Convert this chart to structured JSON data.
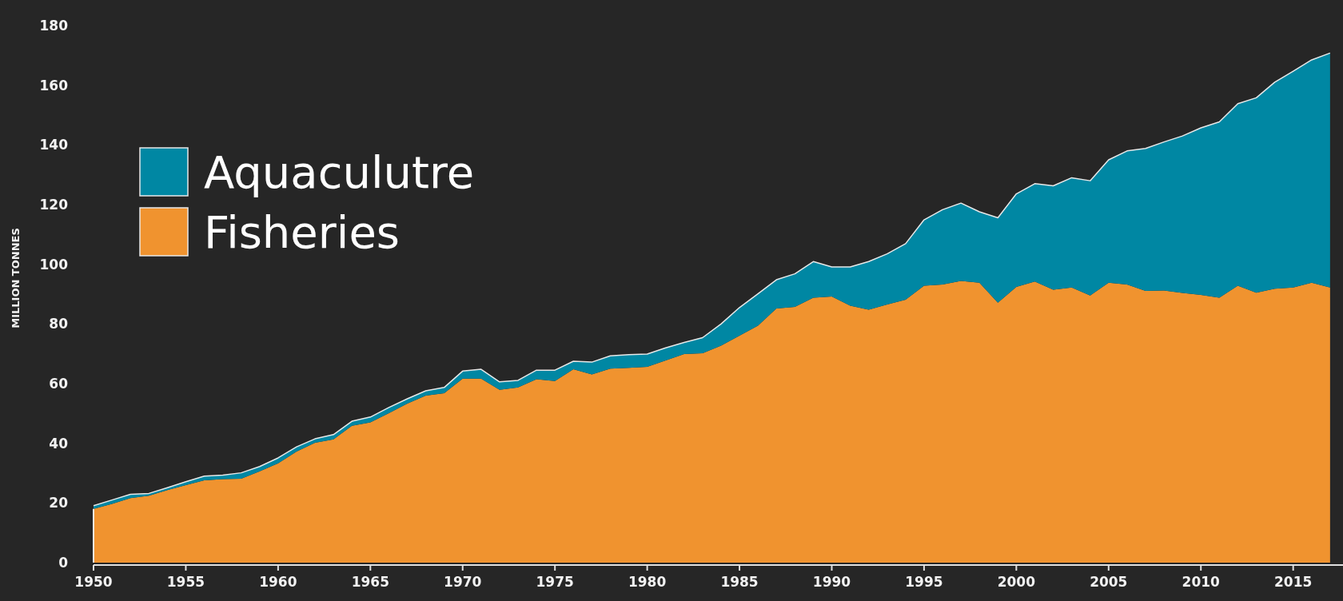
{
  "chart_data": {
    "type": "area",
    "stacked": true,
    "ylabel": "MILLION TONNES",
    "legend": "top left",
    "grid": false,
    "x": [
      1950,
      1951,
      1952,
      1953,
      1954,
      1955,
      1956,
      1957,
      1958,
      1959,
      1960,
      1961,
      1962,
      1963,
      1964,
      1965,
      1966,
      1967,
      1968,
      1969,
      1970,
      1971,
      1972,
      1973,
      1974,
      1975,
      1976,
      1977,
      1978,
      1979,
      1980,
      1981,
      1982,
      1983,
      1984,
      1985,
      1986,
      1987,
      1988,
      1989,
      1990,
      1991,
      1992,
      1993,
      1994,
      1995,
      1996,
      1997,
      1998,
      1999,
      2000,
      2001,
      2002,
      2003,
      2004,
      2005,
      2006,
      2007,
      2008,
      2009,
      2010,
      2011,
      2012,
      2013,
      2014,
      2015,
      2016,
      2017
    ],
    "xlim": [
      1950,
      2017.7
    ],
    "xticks": [
      1950,
      1955,
      1960,
      1965,
      1970,
      1975,
      1980,
      1985,
      1990,
      1995,
      2000,
      2005,
      2010,
      2015
    ],
    "ylim": [
      0,
      180
    ],
    "yticks": [
      0,
      20,
      40,
      60,
      80,
      100,
      120,
      140,
      160,
      180
    ],
    "series": [
      {
        "name": "Fisheries",
        "color": "#f0932f",
        "values": [
          18.0,
          19.7,
          21.6,
          22.4,
          24.3,
          26.0,
          27.6,
          28.0,
          28.1,
          30.6,
          33.3,
          37.2,
          40.2,
          41.3,
          45.9,
          47.0,
          50.1,
          53.3,
          56.0,
          56.8,
          61.7,
          61.7,
          57.9,
          58.7,
          61.5,
          60.9,
          64.8,
          63.1,
          65.0,
          65.3,
          65.6,
          67.8,
          69.9,
          70.2,
          72.7,
          76.1,
          79.4,
          85.2,
          85.7,
          88.8,
          89.2,
          86.1,
          84.8,
          86.5,
          88.1,
          92.8,
          93.2,
          94.4,
          93.8,
          87.1,
          92.4,
          94.2,
          91.5,
          92.2,
          89.5,
          93.8,
          93.2,
          91.1,
          91.2,
          90.4,
          89.7,
          88.8,
          92.8,
          90.5,
          91.8,
          92.2,
          93.8,
          92.2
        ]
      },
      {
        "name": "Aquaculutre",
        "color": "#0087a3",
        "values": [
          1.1,
          1.3,
          1.3,
          0.8,
          0.8,
          1.1,
          1.4,
          1.3,
          2.0,
          1.6,
          1.8,
          1.6,
          1.3,
          1.6,
          1.5,
          1.8,
          1.9,
          1.6,
          1.6,
          1.9,
          2.5,
          3.1,
          2.7,
          2.4,
          3.0,
          3.6,
          2.7,
          4.1,
          4.3,
          4.4,
          4.3,
          4.2,
          3.9,
          5.2,
          7.3,
          9.4,
          10.7,
          9.6,
          11.1,
          12.1,
          9.9,
          13.0,
          16.1,
          17.0,
          18.8,
          22.1,
          25.1,
          26.1,
          23.8,
          28.5,
          31.2,
          32.8,
          34.8,
          36.8,
          38.5,
          41.2,
          44.8,
          47.7,
          49.8,
          52.6,
          56.0,
          58.9,
          61.0,
          65.3,
          69.2,
          72.5,
          74.7,
          78.6
        ]
      }
    ]
  }
}
